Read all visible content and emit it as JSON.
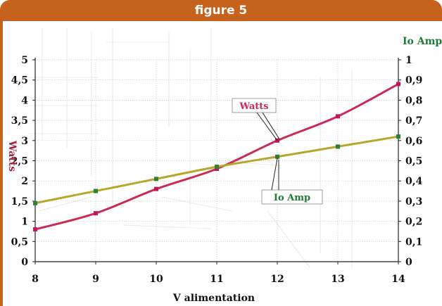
{
  "banner": {
    "title": "figure 5"
  },
  "chart_data": {
    "type": "line",
    "title": "figure 5",
    "xlabel": "V alimentation",
    "ylabel_left": "Watts",
    "ylabel_right": "Io Amp",
    "x": [
      8,
      9,
      10,
      11,
      12,
      13,
      14
    ],
    "xlim": [
      8,
      14
    ],
    "ylim_left": [
      0,
      5
    ],
    "ylim_right": [
      0,
      1
    ],
    "y_ticks_left": [
      "0",
      "0,5",
      "1",
      "1,5",
      "2",
      "2,5",
      "3",
      "3,5",
      "4",
      "4,5",
      "5"
    ],
    "y_ticks_right": [
      "0",
      "0,1",
      "0,2",
      "0,3",
      "0,4",
      "0,5",
      "0,6",
      "0,7",
      "0,8",
      "0,9",
      "1"
    ],
    "x_ticks": [
      "8",
      "9",
      "10",
      "11",
      "12",
      "13",
      "14"
    ],
    "grid": true,
    "series": [
      {
        "name": "Watts",
        "axis": "left",
        "color": "#cc2a55",
        "marker_color": "#c0185a",
        "values": [
          0.8,
          1.2,
          1.8,
          2.3,
          3.0,
          3.6,
          4.4
        ]
      },
      {
        "name": "Io Amp",
        "axis": "right",
        "color": "#b6a62a",
        "marker_color": "#2e7d3a",
        "values": [
          0.29,
          0.35,
          0.41,
          0.47,
          0.52,
          0.57,
          0.62
        ]
      }
    ],
    "annotations": [
      {
        "text": "Watts",
        "color": "#cc2a55"
      },
      {
        "text": "Io Amp",
        "color": "#1f7a36"
      }
    ],
    "colors": {
      "left_axis_title": "#b01e3a",
      "right_axis_title": "#1f7a36"
    }
  }
}
